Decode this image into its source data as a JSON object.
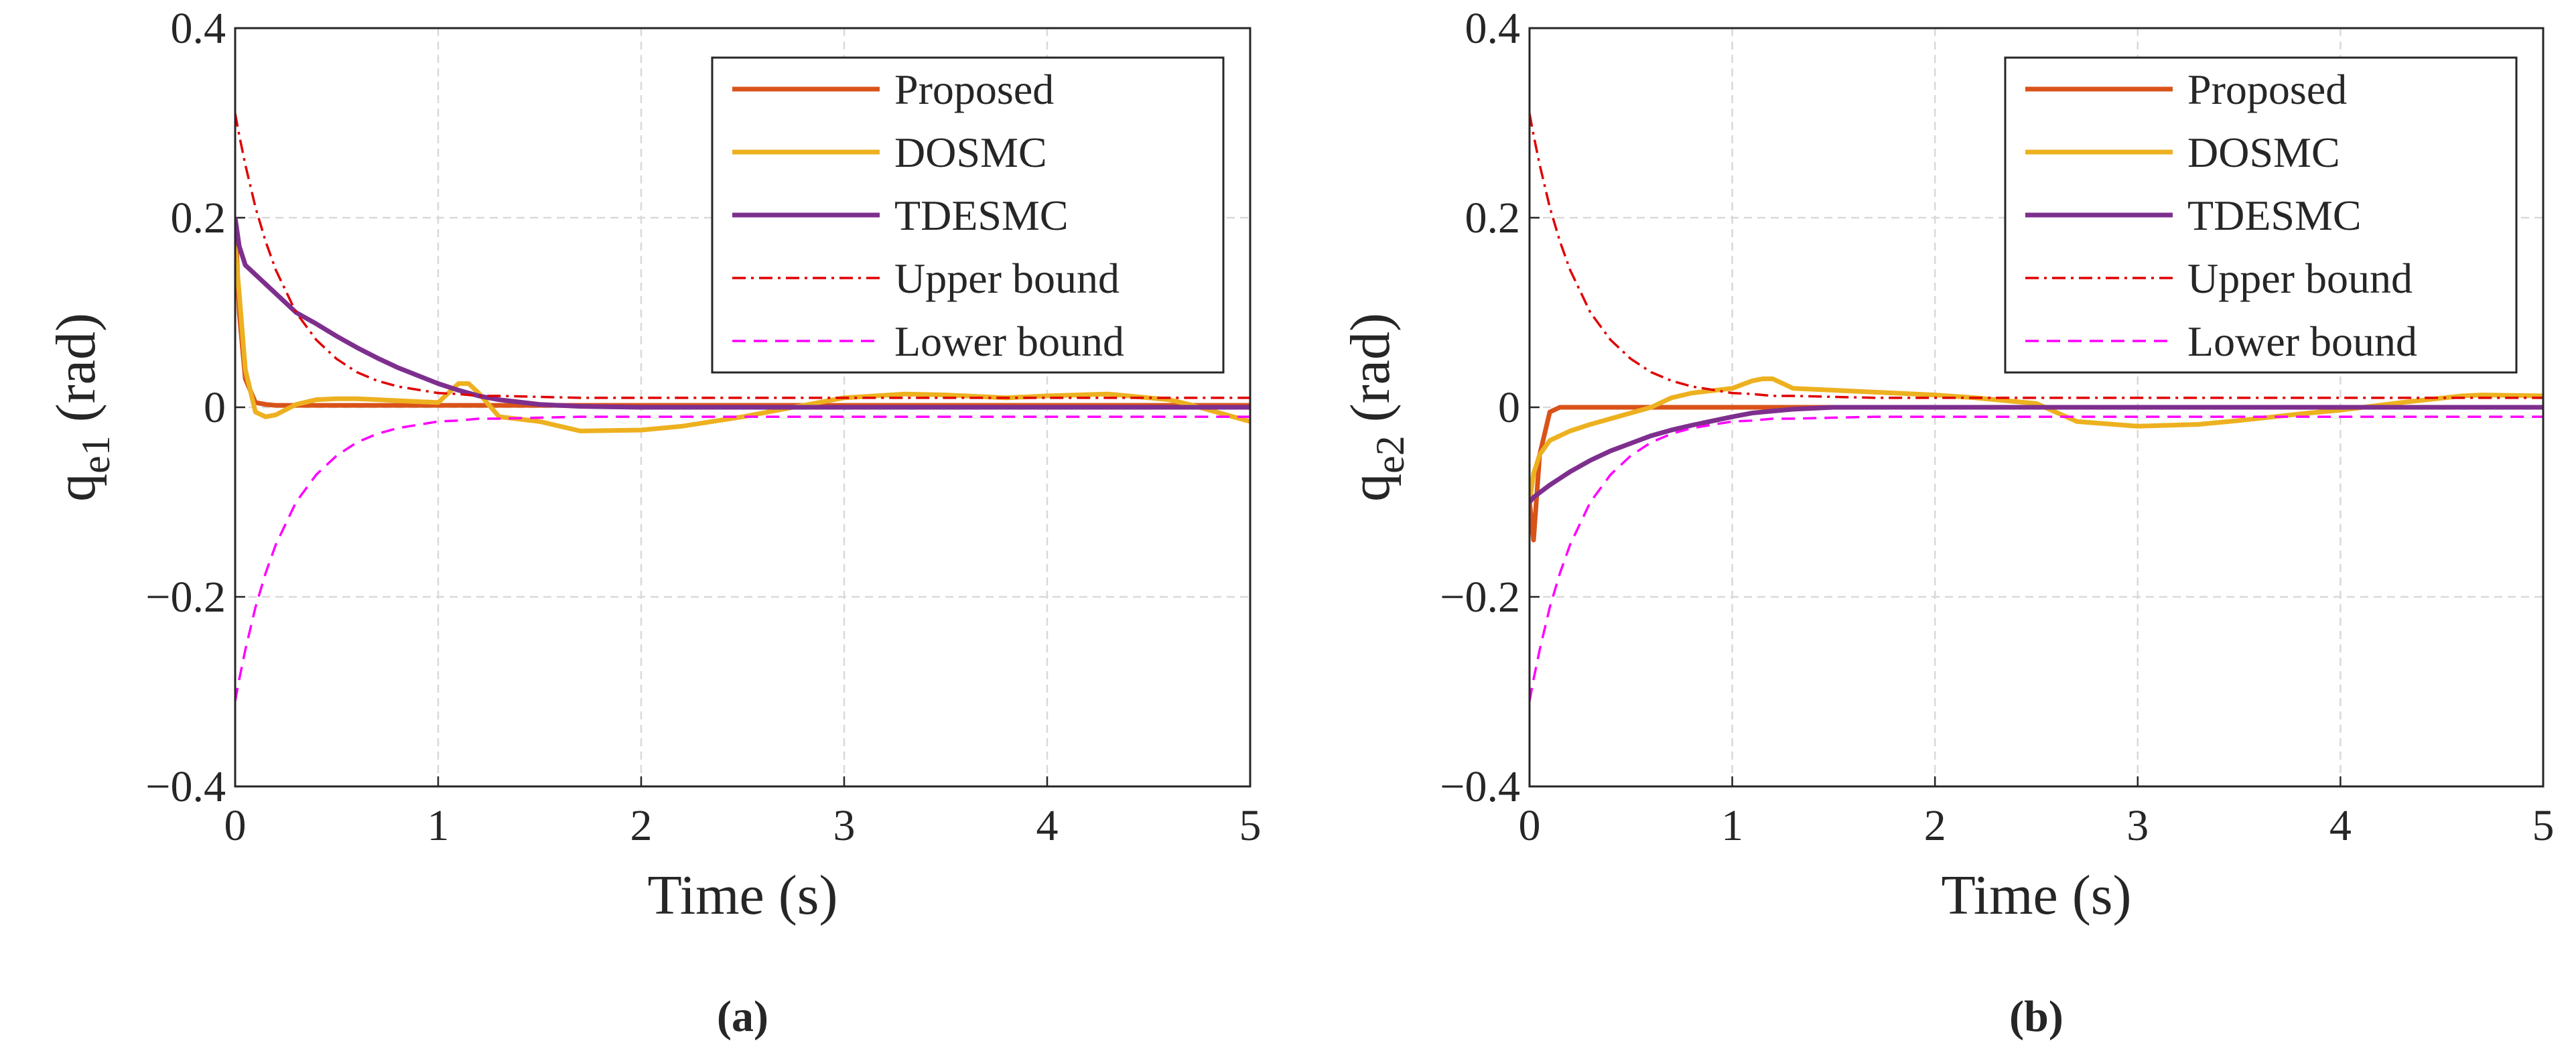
{
  "chart_data": [
    {
      "type": "line",
      "panel_label": "(a)",
      "xlabel": "Time (s)",
      "ylabel": {
        "symbol": "q",
        "subscript": "e1",
        "unit": "(rad)"
      },
      "xlim": [
        0,
        5
      ],
      "xticks": [
        0,
        1,
        2,
        3,
        4,
        5
      ],
      "ylim": [
        -0.4,
        0.4
      ],
      "yticks": [
        {
          "value": -0.4,
          "label": "−0.4"
        },
        {
          "value": -0.2,
          "label": "−0.2"
        },
        0,
        0.2,
        0.4
      ],
      "grid": true,
      "legend": "upper right",
      "x": [
        0,
        0.02,
        0.05,
        0.1,
        0.15,
        0.2,
        0.3,
        0.4,
        0.5,
        0.6,
        0.7,
        0.8,
        1.0,
        1.1,
        1.15,
        1.2,
        1.3,
        1.5,
        1.7,
        2,
        2.2,
        2.5,
        2.7,
        3,
        3.3,
        3.5,
        3.8,
        4,
        4.3,
        4.6,
        4.7,
        5
      ],
      "series": [
        {
          "name": "Proposed",
          "color": "#d95319",
          "dash": "solid",
          "values": [
            0.2,
            0.1,
            0.03,
            0.005,
            0.003,
            0.002,
            0.002,
            0.002,
            0.002,
            0.002,
            0.002,
            0.002,
            0.002,
            0.002,
            0.002,
            0.002,
            0.002,
            0.002,
            0.002,
            0.002,
            0.002,
            0.002,
            0.002,
            0.002,
            0.002,
            0.002,
            0.002,
            0.002,
            0.002,
            0.002,
            0.002,
            0.002
          ]
        },
        {
          "name": "DOSMC",
          "color": "#edb120",
          "dash": "solid",
          "values": [
            0.17,
            0.12,
            0.04,
            -0.005,
            -0.01,
            -0.008,
            0.003,
            0.008,
            0.009,
            0.009,
            0.008,
            0.007,
            0.005,
            0.025,
            0.025,
            0.015,
            -0.01,
            -0.015,
            -0.025,
            -0.024,
            -0.02,
            -0.01,
            -0.002,
            0.01,
            0.014,
            0.013,
            0.01,
            0.012,
            0.014,
            0.008,
            0.003,
            -0.015
          ]
        },
        {
          "name": "TDESMC",
          "color": "#7e2f8e",
          "dash": "solid",
          "values": [
            0.2,
            0.17,
            0.15,
            0.14,
            0.13,
            0.12,
            0.1,
            0.088,
            0.075,
            0.063,
            0.052,
            0.042,
            0.025,
            0.018,
            0.015,
            0.012,
            0.008,
            0.003,
            0.001,
            0,
            0,
            0,
            0,
            0,
            0,
            0,
            0,
            0,
            0,
            0,
            0,
            0
          ]
        },
        {
          "name": "Upper bound",
          "color": "#e00000",
          "dash": "dash-dot",
          "values": [
            0.31,
            0.287,
            0.256,
            0.211,
            0.175,
            0.145,
            0.1,
            0.071,
            0.051,
            0.037,
            0.028,
            0.022,
            0.015,
            0.014,
            0.013,
            0.012,
            0.012,
            0.011,
            0.01,
            0.01,
            0.01,
            0.01,
            0.01,
            0.01,
            0.01,
            0.01,
            0.01,
            0.01,
            0.01,
            0.01,
            0.01,
            0.01
          ]
        },
        {
          "name": "Lower bound",
          "color": "#ff00ff",
          "dash": "dashed",
          "values": [
            -0.31,
            -0.287,
            -0.256,
            -0.211,
            -0.175,
            -0.145,
            -0.1,
            -0.071,
            -0.051,
            -0.037,
            -0.028,
            -0.022,
            -0.015,
            -0.014,
            -0.013,
            -0.012,
            -0.012,
            -0.011,
            -0.01,
            -0.01,
            -0.01,
            -0.01,
            -0.01,
            -0.01,
            -0.01,
            -0.01,
            -0.01,
            -0.01,
            -0.01,
            -0.01,
            -0.01,
            -0.01
          ]
        }
      ]
    },
    {
      "type": "line",
      "panel_label": "(b)",
      "xlabel": "Time (s)",
      "ylabel": {
        "symbol": "q",
        "subscript": "e2",
        "unit": "(rad)"
      },
      "xlim": [
        0,
        5
      ],
      "xticks": [
        0,
        1,
        2,
        3,
        4,
        5
      ],
      "ylim": [
        -0.4,
        0.4
      ],
      "yticks": [
        {
          "value": -0.4,
          "label": "−0.4"
        },
        {
          "value": -0.2,
          "label": "−0.2"
        },
        0,
        0.2,
        0.4
      ],
      "grid": true,
      "legend": "upper right",
      "x": [
        0,
        0.02,
        0.05,
        0.1,
        0.15,
        0.2,
        0.3,
        0.4,
        0.5,
        0.6,
        0.7,
        0.8,
        1.0,
        1.1,
        1.15,
        1.2,
        1.3,
        1.5,
        1.7,
        2,
        2.2,
        2.5,
        2.7,
        3,
        3.3,
        3.5,
        3.8,
        4,
        4.3,
        4.6,
        4.7,
        5
      ],
      "series": [
        {
          "name": "Proposed",
          "color": "#d95319",
          "dash": "solid",
          "values": [
            -0.1,
            -0.14,
            -0.05,
            -0.005,
            0,
            0,
            0,
            0,
            0,
            0,
            0,
            0,
            0,
            0,
            0,
            0,
            0,
            0,
            0,
            0,
            0,
            0,
            0,
            0,
            0,
            0,
            0,
            0,
            0,
            0,
            0,
            0
          ]
        },
        {
          "name": "DOSMC",
          "color": "#edb120",
          "dash": "solid",
          "values": [
            -0.1,
            -0.07,
            -0.05,
            -0.035,
            -0.03,
            -0.025,
            -0.018,
            -0.012,
            -0.006,
            0,
            0.01,
            0.015,
            0.02,
            0.028,
            0.03,
            0.03,
            0.02,
            0.018,
            0.016,
            0.013,
            0.01,
            0.004,
            -0.015,
            -0.02,
            -0.018,
            -0.014,
            -0.007,
            -0.003,
            0.005,
            0.012,
            0.013,
            0.012
          ]
        },
        {
          "name": "TDESMC",
          "color": "#7e2f8e",
          "dash": "solid",
          "values": [
            -0.1,
            -0.095,
            -0.09,
            -0.082,
            -0.075,
            -0.068,
            -0.056,
            -0.046,
            -0.038,
            -0.03,
            -0.024,
            -0.019,
            -0.01,
            -0.006,
            -0.005,
            -0.004,
            -0.002,
            0,
            0,
            0,
            0,
            0,
            0,
            0,
            0,
            0,
            0,
            0,
            0,
            0,
            0,
            0
          ]
        },
        {
          "name": "Upper bound",
          "color": "#e00000",
          "dash": "dash-dot",
          "values": [
            0.31,
            0.287,
            0.256,
            0.211,
            0.175,
            0.145,
            0.1,
            0.071,
            0.051,
            0.037,
            0.028,
            0.022,
            0.015,
            0.014,
            0.013,
            0.012,
            0.012,
            0.011,
            0.01,
            0.01,
            0.01,
            0.01,
            0.01,
            0.01,
            0.01,
            0.01,
            0.01,
            0.01,
            0.01,
            0.01,
            0.01,
            0.01
          ]
        },
        {
          "name": "Lower bound",
          "color": "#ff00ff",
          "dash": "dashed",
          "values": [
            -0.31,
            -0.287,
            -0.256,
            -0.211,
            -0.175,
            -0.145,
            -0.1,
            -0.071,
            -0.051,
            -0.037,
            -0.028,
            -0.022,
            -0.015,
            -0.014,
            -0.013,
            -0.012,
            -0.012,
            -0.011,
            -0.01,
            -0.01,
            -0.01,
            -0.01,
            -0.01,
            -0.01,
            -0.01,
            -0.01,
            -0.01,
            -0.01,
            -0.01,
            -0.01,
            -0.01,
            -0.01
          ]
        }
      ]
    }
  ]
}
